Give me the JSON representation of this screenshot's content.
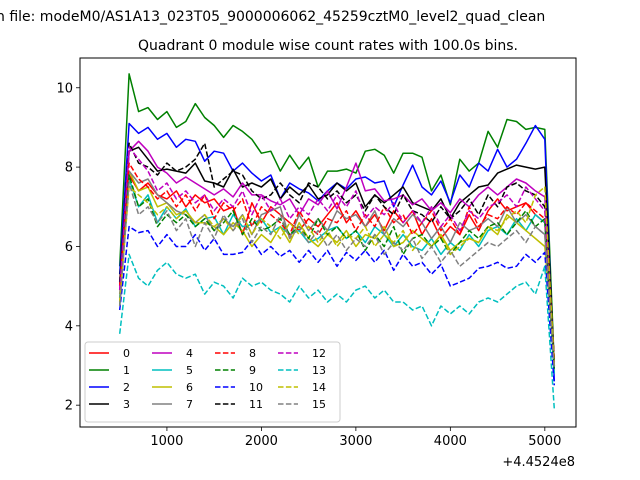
{
  "suptitle": "n file: modeM0/AS1A13_023T05_9000006062_45259cztM0_level2_quad_clean",
  "chart_data": {
    "type": "line",
    "title": "Quadrant 0 module wise count rates with 100.0s bins.",
    "xlabel": "",
    "ylabel": "",
    "x_offset_label": "+4.4524e8",
    "xlim": [
      80,
      5330
    ],
    "ylim": [
      1.45,
      10.75
    ],
    "xticks": [
      1000,
      2000,
      3000,
      4000,
      5000
    ],
    "xtick_labels": [
      "1000",
      "2000",
      "3000",
      "4000",
      "5000"
    ],
    "yticks": [
      2,
      4,
      6,
      8,
      10
    ],
    "ytick_labels": [
      "2",
      "4",
      "6",
      "8",
      "10"
    ],
    "x": [
      500,
      600,
      700,
      800,
      900,
      1000,
      1100,
      1200,
      1300,
      1400,
      1500,
      1600,
      1700,
      1800,
      1900,
      2000,
      2100,
      2200,
      2300,
      2400,
      2500,
      2600,
      2700,
      2800,
      2900,
      3000,
      3100,
      3200,
      3300,
      3400,
      3500,
      3600,
      3700,
      3800,
      3900,
      4000,
      4100,
      4200,
      4300,
      4400,
      4500,
      4600,
      4700,
      4800,
      4900,
      5000,
      5100
    ],
    "legend_loc": "lower-left",
    "series": [
      {
        "name": "0",
        "color": "#ff0000",
        "dash": "solid",
        "values": [
          5.0,
          7.8,
          7.4,
          7.6,
          7.3,
          7.2,
          7.4,
          7.0,
          7.3,
          7.1,
          7.2,
          6.9,
          7.0,
          6.3,
          7.1,
          6.6,
          7.0,
          6.8,
          6.6,
          6.4,
          6.7,
          6.5,
          6.8,
          7.1,
          6.6,
          6.9,
          6.5,
          6.8,
          6.4,
          6.9,
          6.6,
          6.9,
          6.3,
          6.7,
          6.2,
          6.5,
          6.3,
          6.8,
          6.4,
          6.9,
          7.2,
          6.9,
          7.0,
          7.1,
          6.8,
          6.6,
          3.0
        ]
      },
      {
        "name": "1",
        "color": "#008000",
        "dash": "solid",
        "values": [
          5.5,
          10.35,
          9.4,
          9.5,
          9.2,
          9.4,
          9.0,
          9.15,
          9.6,
          9.25,
          9.05,
          8.75,
          9.05,
          8.9,
          8.7,
          8.35,
          8.4,
          7.9,
          8.3,
          7.95,
          8.25,
          7.5,
          7.9,
          7.9,
          7.95,
          7.85,
          8.4,
          8.45,
          8.3,
          7.85,
          8.35,
          8.35,
          8.25,
          7.4,
          7.8,
          7.05,
          8.2,
          7.9,
          8.1,
          8.9,
          8.5,
          9.2,
          9.15,
          8.95,
          9.0,
          8.95,
          3.0
        ]
      },
      {
        "name": "2",
        "color": "#0000ff",
        "dash": "solid",
        "values": [
          5.3,
          9.1,
          8.85,
          9.0,
          8.7,
          8.85,
          8.5,
          8.7,
          8.65,
          8.15,
          8.4,
          8.35,
          7.9,
          8.1,
          7.85,
          7.65,
          7.8,
          7.2,
          7.6,
          7.45,
          7.35,
          7.15,
          7.4,
          7.6,
          7.45,
          7.7,
          7.75,
          7.6,
          7.65,
          7.0,
          7.55,
          8.05,
          7.5,
          7.3,
          7.65,
          7.1,
          7.8,
          7.5,
          8.1,
          7.9,
          8.45,
          8.0,
          8.2,
          8.6,
          9.05,
          8.7,
          2.6
        ]
      },
      {
        "name": "3",
        "color": "#000000",
        "dash": "solid",
        "values": [
          5.1,
          8.4,
          8.5,
          8.2,
          7.9,
          7.95,
          7.9,
          7.85,
          8.1,
          7.65,
          7.6,
          7.5,
          7.95,
          7.5,
          7.6,
          7.5,
          7.7,
          7.2,
          7.5,
          7.3,
          7.55,
          7.2,
          7.3,
          7.6,
          7.4,
          7.6,
          7.0,
          7.3,
          7.1,
          7.3,
          7.5,
          7.1,
          7.0,
          6.9,
          7.2,
          6.7,
          7.1,
          7.3,
          7.5,
          7.55,
          7.85,
          7.95,
          8.05,
          8.0,
          7.95,
          8.0,
          3.0
        ]
      },
      {
        "name": "4",
        "color": "#bf00bf",
        "dash": "solid",
        "values": [
          4.9,
          8.4,
          8.65,
          8.4,
          8.0,
          7.85,
          7.6,
          7.75,
          7.6,
          7.45,
          7.3,
          7.45,
          7.25,
          7.6,
          7.3,
          7.3,
          7.15,
          7.05,
          7.2,
          6.8,
          7.2,
          7.05,
          7.4,
          6.95,
          7.5,
          8.1,
          7.4,
          7.45,
          7.15,
          7.2,
          7.3,
          7.05,
          7.2,
          6.9,
          7.1,
          6.85,
          7.2,
          7.0,
          7.3,
          7.5,
          7.3,
          7.5,
          7.7,
          7.6,
          7.4,
          7.25,
          2.9
        ]
      },
      {
        "name": "5",
        "color": "#00bfbf",
        "dash": "solid",
        "values": [
          4.7,
          7.7,
          7.0,
          7.3,
          6.6,
          7.0,
          6.7,
          6.95,
          6.5,
          6.7,
          6.75,
          6.3,
          6.8,
          6.5,
          6.55,
          6.7,
          6.35,
          6.5,
          6.3,
          6.4,
          6.1,
          6.2,
          6.4,
          6.5,
          6.2,
          6.4,
          6.1,
          6.5,
          6.3,
          6.0,
          6.3,
          6.0,
          5.9,
          6.2,
          5.8,
          6.1,
          5.9,
          6.3,
          6.0,
          6.4,
          6.5,
          6.3,
          6.7,
          6.4,
          6.8,
          6.6,
          2.8
        ]
      },
      {
        "name": "6",
        "color": "#bfbf00",
        "dash": "solid",
        "values": [
          4.6,
          7.9,
          7.4,
          7.5,
          7.0,
          7.1,
          6.8,
          6.9,
          6.6,
          6.6,
          6.5,
          6.3,
          6.6,
          6.4,
          6.0,
          6.3,
          6.1,
          6.5,
          6.1,
          6.6,
          6.2,
          6.0,
          6.3,
          6.1,
          6.4,
          6.0,
          6.3,
          6.2,
          6.5,
          6.0,
          6.1,
          6.4,
          6.2,
          6.0,
          6.3,
          5.9,
          6.1,
          6.2,
          6.1,
          6.5,
          6.3,
          6.8,
          6.6,
          6.4,
          6.2,
          6.0,
          3.1
        ]
      },
      {
        "name": "7",
        "color": "#808080",
        "dash": "solid",
        "values": [
          4.8,
          7.9,
          7.6,
          7.7,
          7.3,
          7.1,
          6.9,
          6.8,
          6.6,
          6.8,
          6.4,
          6.7,
          6.5,
          6.8,
          6.3,
          6.8,
          6.9,
          7.0,
          6.2,
          6.8,
          6.4,
          6.7,
          6.4,
          6.9,
          6.7,
          6.8,
          6.5,
          6.9,
          6.3,
          6.7,
          6.5,
          6.8,
          6.6,
          6.2,
          6.5,
          6.1,
          6.6,
          6.4,
          6.5,
          6.7,
          6.5,
          7.0,
          6.6,
          6.8,
          6.5,
          6.3,
          3.0
        ]
      },
      {
        "name": "8",
        "color": "#ff0000",
        "dash": "dashed",
        "values": [
          5.0,
          8.1,
          7.7,
          7.5,
          7.2,
          7.4,
          7.0,
          7.3,
          6.9,
          7.3,
          6.7,
          7.1,
          6.9,
          7.2,
          6.5,
          7.0,
          6.8,
          6.6,
          6.3,
          6.9,
          6.5,
          6.3,
          6.7,
          6.6,
          6.9,
          6.4,
          6.8,
          6.5,
          7.0,
          6.6,
          6.8,
          6.3,
          6.6,
          6.9,
          6.4,
          6.7,
          6.3,
          7.0,
          6.5,
          6.8,
          6.7,
          7.0,
          6.8,
          7.1,
          6.9,
          6.7,
          3.2
        ]
      },
      {
        "name": "9",
        "color": "#008000",
        "dash": "dashed",
        "values": [
          4.5,
          7.8,
          7.0,
          7.2,
          6.5,
          6.8,
          6.6,
          6.8,
          6.5,
          6.7,
          6.4,
          6.6,
          6.9,
          6.3,
          6.7,
          6.4,
          6.5,
          6.7,
          6.3,
          6.5,
          6.2,
          6.7,
          6.3,
          6.5,
          6.2,
          6.4,
          5.9,
          6.3,
          6.0,
          6.5,
          5.8,
          6.2,
          6.3,
          6.0,
          6.2,
          5.8,
          6.1,
          6.4,
          6.2,
          6.5,
          6.6,
          6.3,
          6.6,
          6.9,
          6.5,
          6.7,
          2.9
        ]
      },
      {
        "name": "10",
        "color": "#0000ff",
        "dash": "dashed",
        "values": [
          4.4,
          6.5,
          6.35,
          6.4,
          6.0,
          6.3,
          6.0,
          6.0,
          6.3,
          5.9,
          6.2,
          5.8,
          5.8,
          5.85,
          6.15,
          5.8,
          6.0,
          5.75,
          5.9,
          5.6,
          5.9,
          5.6,
          5.9,
          5.5,
          5.85,
          5.65,
          5.9,
          5.6,
          5.9,
          5.4,
          5.8,
          5.5,
          5.6,
          5.3,
          5.55,
          5.0,
          5.1,
          5.2,
          5.45,
          5.5,
          5.6,
          5.45,
          5.5,
          5.8,
          5.6,
          5.85,
          2.5
        ]
      },
      {
        "name": "11",
        "color": "#000000",
        "dash": "dashed",
        "values": [
          5.1,
          8.6,
          8.1,
          8.0,
          7.8,
          8.1,
          7.9,
          8.0,
          8.2,
          8.6,
          7.5,
          7.7,
          7.9,
          7.8,
          7.4,
          7.2,
          7.3,
          7.6,
          7.3,
          7.1,
          7.6,
          7.5,
          7.2,
          7.4,
          7.1,
          7.3,
          6.9,
          7.3,
          7.0,
          6.8,
          7.3,
          6.9,
          6.8,
          6.6,
          7.0,
          6.7,
          6.9,
          7.2,
          6.8,
          7.3,
          7.0,
          7.5,
          7.6,
          7.4,
          7.3,
          7.0,
          3.1
        ]
      },
      {
        "name": "12",
        "color": "#bf00bf",
        "dash": "dashed",
        "values": [
          4.9,
          8.5,
          8.2,
          7.9,
          7.4,
          7.6,
          7.2,
          7.4,
          7.1,
          7.3,
          6.9,
          7.2,
          7.0,
          7.4,
          6.8,
          7.3,
          6.9,
          7.2,
          6.7,
          7.0,
          6.8,
          7.2,
          6.9,
          7.3,
          7.0,
          7.4,
          6.7,
          7.0,
          6.8,
          7.1,
          6.6,
          6.9,
          6.6,
          7.0,
          6.5,
          6.8,
          6.4,
          6.9,
          6.7,
          7.0,
          7.1,
          7.3,
          7.0,
          7.5,
          7.2,
          6.9,
          3.0
        ]
      },
      {
        "name": "13",
        "color": "#00bfbf",
        "dash": "dashed",
        "values": [
          3.8,
          5.8,
          5.2,
          5.0,
          5.4,
          5.6,
          5.3,
          5.2,
          5.3,
          4.8,
          5.1,
          5.0,
          4.7,
          5.2,
          5.0,
          5.1,
          4.9,
          4.8,
          4.6,
          5.0,
          4.7,
          4.9,
          4.6,
          4.8,
          4.6,
          4.9,
          5.0,
          4.7,
          4.9,
          4.6,
          4.6,
          4.4,
          4.5,
          4.0,
          4.5,
          4.3,
          4.5,
          4.3,
          4.6,
          4.7,
          4.6,
          4.8,
          5.0,
          5.1,
          4.8,
          5.5,
          1.9
        ]
      },
      {
        "name": "14",
        "color": "#bfbf00",
        "dash": "dashed",
        "values": [
          4.6,
          7.5,
          7.3,
          7.1,
          6.8,
          7.0,
          6.7,
          6.9,
          6.6,
          6.8,
          6.5,
          6.7,
          6.4,
          6.8,
          6.3,
          6.7,
          6.5,
          6.2,
          6.6,
          6.3,
          6.5,
          6.1,
          6.4,
          6.0,
          6.3,
          6.2,
          6.5,
          6.0,
          6.3,
          6.1,
          6.4,
          5.9,
          6.2,
          6.0,
          6.3,
          5.8,
          6.0,
          6.2,
          6.1,
          6.5,
          6.4,
          6.7,
          6.9,
          6.6,
          7.3,
          7.5,
          3.0
        ]
      },
      {
        "name": "15",
        "color": "#808080",
        "dash": "dashed",
        "values": [
          4.5,
          7.6,
          6.8,
          7.0,
          6.6,
          6.9,
          6.4,
          6.7,
          6.0,
          6.6,
          6.2,
          6.8,
          6.4,
          6.7,
          6.1,
          6.5,
          6.3,
          6.8,
          6.2,
          6.5,
          6.1,
          6.4,
          6.0,
          6.3,
          5.9,
          6.2,
          6.0,
          6.3,
          5.8,
          6.1,
          5.9,
          6.2,
          5.7,
          6.0,
          5.6,
          5.9,
          5.5,
          5.7,
          5.9,
          6.1,
          6.0,
          6.2,
          6.4,
          6.1,
          6.5,
          6.3,
          2.9
        ]
      }
    ]
  }
}
